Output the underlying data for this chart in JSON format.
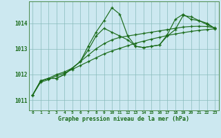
{
  "title": "Graphe pression niveau de la mer (hPa)",
  "bg_color": "#cce8f0",
  "grid_color": "#88bbbb",
  "line_color": "#1a6b1a",
  "xlim": [
    -0.5,
    23.5
  ],
  "ylim": [
    1010.6,
    1014.85
  ],
  "yticks": [
    1011,
    1012,
    1013,
    1014
  ],
  "xticks": [
    0,
    1,
    2,
    3,
    4,
    5,
    6,
    7,
    8,
    9,
    10,
    11,
    12,
    13,
    14,
    15,
    16,
    17,
    18,
    19,
    20,
    21,
    22,
    23
  ],
  "s1": [
    1011.2,
    1011.75,
    1011.85,
    1011.85,
    1012.0,
    1012.25,
    1012.5,
    1013.1,
    1013.65,
    1014.1,
    1014.6,
    1014.35,
    1013.5,
    1013.1,
    1013.05,
    1013.1,
    1013.15,
    1013.55,
    1014.15,
    1014.35,
    1014.15,
    1014.1,
    1014.0,
    1013.8
  ],
  "s2": [
    1011.2,
    1011.75,
    1011.85,
    1011.85,
    1012.0,
    1012.25,
    1012.5,
    1012.95,
    1013.5,
    1013.8,
    1013.65,
    1013.5,
    1013.35,
    1013.1,
    1013.05,
    1013.1,
    1013.15,
    1013.5,
    1013.75,
    1014.3,
    1014.25,
    1014.1,
    1013.95,
    1013.8
  ],
  "s3": [
    1011.2,
    1011.75,
    1011.85,
    1012.0,
    1012.1,
    1012.25,
    1012.5,
    1012.75,
    1013.0,
    1013.2,
    1013.35,
    1013.45,
    1013.5,
    1013.55,
    1013.6,
    1013.65,
    1013.7,
    1013.75,
    1013.8,
    1013.85,
    1013.87,
    1013.88,
    1013.87,
    1013.82
  ],
  "s4": [
    1011.2,
    1011.7,
    1011.8,
    1011.95,
    1012.05,
    1012.2,
    1012.35,
    1012.5,
    1012.65,
    1012.8,
    1012.92,
    1013.02,
    1013.12,
    1013.22,
    1013.3,
    1013.38,
    1013.45,
    1013.52,
    1013.58,
    1013.63,
    1013.68,
    1013.72,
    1013.75,
    1013.78
  ]
}
